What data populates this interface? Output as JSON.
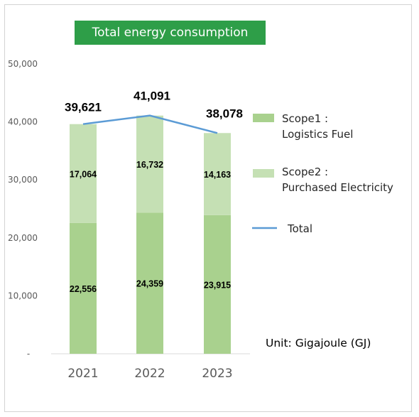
{
  "chart_data": {
    "type": "bar",
    "stacked": true,
    "title": "Total energy consumption",
    "categories": [
      "2021",
      "2022",
      "2023"
    ],
    "series": [
      {
        "name": "Scope1 : Logistics Fuel",
        "values": [
          22556,
          24359,
          23915
        ],
        "labels": [
          "22,556",
          "24,359",
          "23,915"
        ],
        "color": "#a9d18e"
      },
      {
        "name": "Scope2 : Purchased Electricity",
        "values": [
          17064,
          16732,
          14163
        ],
        "labels": [
          "17,064",
          "16,732",
          "14,163"
        ],
        "color": "#c5e0b4"
      }
    ],
    "total": {
      "name": "Total",
      "values": [
        39621,
        41091,
        38078
      ],
      "labels": [
        "39,621",
        "41,091",
        "38,078"
      ],
      "color": "#5b9bd5"
    },
    "ylim": [
      0,
      50000
    ],
    "yticks": [
      0,
      10000,
      20000,
      30000,
      40000,
      50000
    ],
    "ytick_labels": [
      "-",
      "10,000",
      "20,000",
      "30,000",
      "40,000",
      "50,000"
    ],
    "grid": false,
    "legend_position": "right",
    "legend": [
      {
        "label": "Scope1 :\nLogistics Fuel",
        "kind": "box",
        "color": "#a9d18e"
      },
      {
        "label": "Scope2 :\nPurchased Electricity",
        "kind": "box",
        "color": "#c5e0b4"
      },
      {
        "label": "Total",
        "kind": "line",
        "color": "#5b9bd5"
      }
    ],
    "annotation": "Unit: Gigajoule (GJ)"
  }
}
